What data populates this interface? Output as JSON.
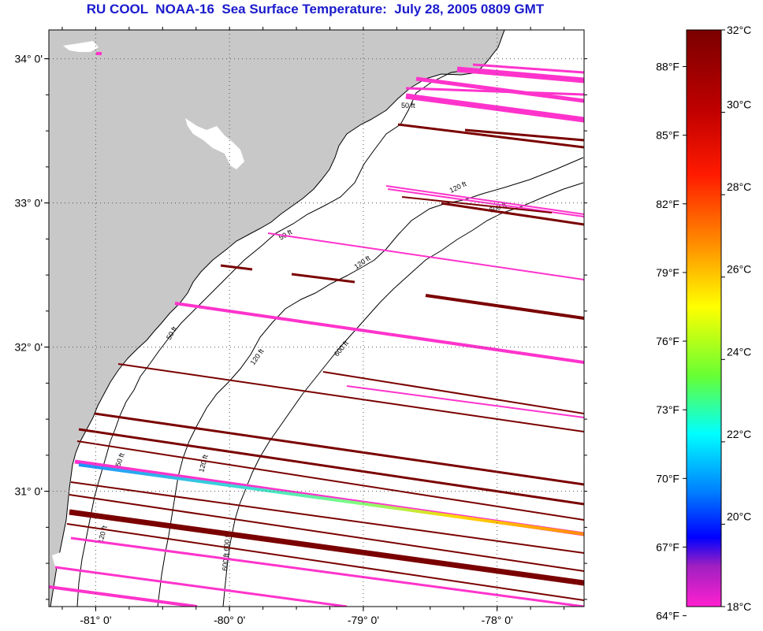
{
  "title": "RU COOL  NOAA-16  Sea Surface Temperature:  July 28, 2005 0809 GMT",
  "map": {
    "lon_range": [
      -81.35,
      -77.35
    ],
    "lat_range": [
      30.2,
      34.2
    ],
    "lon_ticks": [
      {
        "value": -81,
        "label": "-81° 0'"
      },
      {
        "value": -80,
        "label": "-80° 0'"
      },
      {
        "value": -79,
        "label": "-79° 0'"
      },
      {
        "value": -78,
        "label": "-78° 0'"
      }
    ],
    "lat_ticks": [
      {
        "value": 34,
        "label": "34° 0'"
      },
      {
        "value": 33,
        "label": "33° 0'"
      },
      {
        "value": 32,
        "label": "32° 0'"
      },
      {
        "value": 31,
        "label": "31° 0'"
      }
    ],
    "land_color": "#c8c8c8",
    "ocean_color": "#ffffff",
    "contour_labels": [
      "50 ft",
      "120 ft",
      "600 ft"
    ]
  },
  "colorbar": {
    "celsius_labels": [
      "32°C",
      "30°C",
      "28°C",
      "26°C",
      "24°C",
      "22°C",
      "20°C",
      "18°C"
    ],
    "fahrenheit_labels": [
      "88°F",
      "85°F",
      "82°F",
      "79°F",
      "76°F",
      "73°F",
      "70°F",
      "67°F",
      "64°F"
    ],
    "celsius_range": [
      18,
      32
    ],
    "fahrenheit_values": [
      88,
      85,
      82,
      79,
      76,
      73,
      70,
      67,
      64
    ]
  }
}
